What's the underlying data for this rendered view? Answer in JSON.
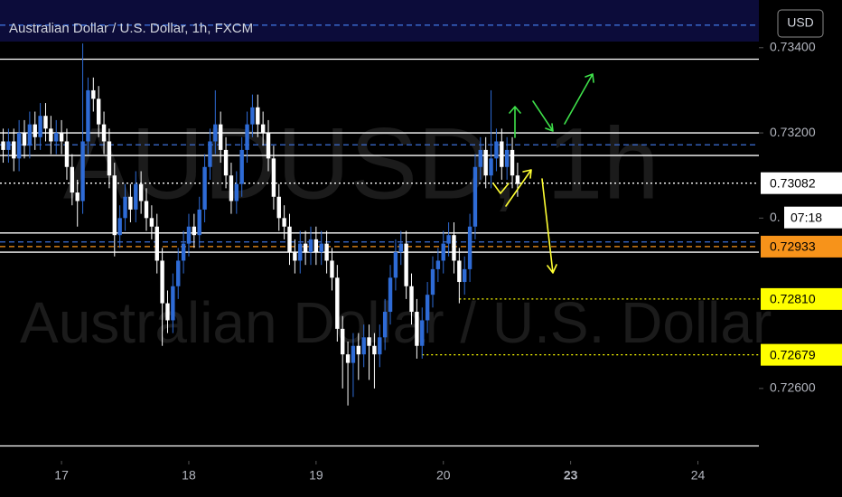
{
  "chart_data": {
    "type": "candlestick",
    "title": "Australian Dollar / U.S. Dollar, 1h, FXCM",
    "watermark": "AUDUSD, 1h",
    "watermark_subtitle": "Australian Dollar / U.S. Dollar",
    "currency": "USD",
    "countdown": "07:18",
    "up_color": "#2e6bd6",
    "down_color": "#ffffff",
    "x": [
      -11,
      -10,
      -9,
      -8,
      -7,
      -6,
      -5,
      -4,
      -3,
      -2,
      -1,
      0,
      1,
      2,
      3,
      4,
      5,
      6,
      7,
      8,
      9,
      10,
      11,
      12,
      13,
      14,
      15,
      16,
      17,
      18,
      19,
      20,
      21,
      22,
      23,
      24,
      25,
      26,
      27,
      28,
      29,
      30,
      31,
      32,
      33,
      34,
      35,
      36,
      37,
      38,
      39,
      40,
      41,
      42,
      43,
      44,
      45,
      46,
      47,
      48,
      49,
      50,
      51,
      52,
      53,
      54,
      55,
      56,
      57,
      58,
      59,
      60,
      61,
      62,
      63,
      64,
      65,
      66,
      67,
      68,
      69,
      70,
      71,
      72,
      73,
      74,
      75,
      76,
      77,
      78,
      79,
      80,
      81,
      82,
      83,
      84,
      85,
      86
    ],
    "open": [
      0.7318,
      0.7316,
      0.7318,
      0.7314,
      0.732,
      0.7317,
      0.7322,
      0.7319,
      0.7324,
      0.7321,
      0.7318,
      0.732,
      0.7318,
      0.7312,
      0.7306,
      0.7304,
      0.7318,
      0.733,
      0.7328,
      0.7322,
      0.7318,
      0.731,
      0.7296,
      0.73,
      0.7305,
      0.7302,
      0.7308,
      0.7304,
      0.73,
      0.7298,
      0.729,
      0.728,
      0.7276,
      0.7284,
      0.729,
      0.7294,
      0.7298,
      0.7296,
      0.7302,
      0.7312,
      0.7318,
      0.7322,
      0.7316,
      0.731,
      0.7304,
      0.7308,
      0.7316,
      0.7322,
      0.7326,
      0.7322,
      0.732,
      0.7314,
      0.7305,
      0.73,
      0.7298,
      0.7292,
      0.729,
      0.7294,
      0.7292,
      0.7295,
      0.7292,
      0.7294,
      0.729,
      0.7286,
      0.7274,
      0.7268,
      0.7266,
      0.727,
      0.7268,
      0.7272,
      0.727,
      0.7268,
      0.7272,
      0.7278,
      0.7286,
      0.7292,
      0.7294,
      0.7284,
      0.7278,
      0.727,
      0.7276,
      0.7282,
      0.7288,
      0.729,
      0.7294,
      0.7296,
      0.729,
      0.7285,
      0.7288,
      0.7298,
      0.7312,
      0.7316,
      0.731,
      0.7314,
      0.7318,
      0.7312,
      0.7316,
      0.731
    ],
    "high": [
      0.7321,
      0.7321,
      0.7321,
      0.7323,
      0.7323,
      0.7325,
      0.7325,
      0.7327,
      0.7327,
      0.7324,
      0.7323,
      0.7323,
      0.7321,
      0.7315,
      0.7309,
      0.7341,
      0.7333,
      0.7333,
      0.7331,
      0.7325,
      0.7321,
      0.7313,
      0.7303,
      0.7308,
      0.7308,
      0.7311,
      0.7311,
      0.7307,
      0.7303,
      0.7301,
      0.7293,
      0.7283,
      0.7287,
      0.7293,
      0.7297,
      0.7301,
      0.7301,
      0.7305,
      0.7315,
      0.7321,
      0.733,
      0.7325,
      0.7319,
      0.7313,
      0.7311,
      0.7319,
      0.7325,
      0.7329,
      0.7329,
      0.7325,
      0.7323,
      0.7317,
      0.7308,
      0.7303,
      0.7301,
      0.7295,
      0.7297,
      0.7297,
      0.7298,
      0.7298,
      0.7297,
      0.7297,
      0.7293,
      0.7289,
      0.7277,
      0.7271,
      0.7273,
      0.7273,
      0.7275,
      0.7275,
      0.7273,
      0.7275,
      0.7281,
      0.7289,
      0.7295,
      0.7297,
      0.7297,
      0.7287,
      0.7281,
      0.7279,
      0.7285,
      0.7291,
      0.7293,
      0.7297,
      0.7299,
      0.7299,
      0.7293,
      0.7291,
      0.7301,
      0.7315,
      0.7319,
      0.7319,
      0.733,
      0.7321,
      0.7321,
      0.7319,
      0.7319,
      0.7313
    ],
    "low": [
      0.7313,
      0.7313,
      0.7311,
      0.7311,
      0.7314,
      0.7314,
      0.7316,
      0.7316,
      0.7318,
      0.7315,
      0.7315,
      0.7315,
      0.7309,
      0.7303,
      0.7298,
      0.7301,
      0.7315,
      0.7325,
      0.7319,
      0.7315,
      0.7307,
      0.7291,
      0.7293,
      0.7297,
      0.7299,
      0.7299,
      0.7301,
      0.7297,
      0.7295,
      0.7287,
      0.727,
      0.7273,
      0.7273,
      0.7281,
      0.7287,
      0.7291,
      0.7293,
      0.7293,
      0.7299,
      0.7309,
      0.7315,
      0.7313,
      0.7307,
      0.7301,
      0.7301,
      0.7305,
      0.7313,
      0.7319,
      0.7319,
      0.7317,
      0.7311,
      0.7302,
      0.7297,
      0.7295,
      0.7289,
      0.7287,
      0.7287,
      0.7289,
      0.7289,
      0.7289,
      0.7289,
      0.7287,
      0.7283,
      0.7271,
      0.726,
      0.7256,
      0.7258,
      0.7262,
      0.7265,
      0.7262,
      0.726,
      0.7265,
      0.7269,
      0.7275,
      0.7283,
      0.7289,
      0.7281,
      0.7275,
      0.7267,
      0.7267,
      0.7273,
      0.7279,
      0.7285,
      0.7287,
      0.7291,
      0.7287,
      0.728,
      0.7282,
      0.7285,
      0.7295,
      0.7309,
      0.7307,
      0.7307,
      0.7311,
      0.7309,
      0.7309,
      0.7307,
      0.7305
    ],
    "close": [
      0.7316,
      0.7318,
      0.7314,
      0.732,
      0.7317,
      0.7322,
      0.7319,
      0.7324,
      0.7321,
      0.7318,
      0.732,
      0.7318,
      0.7312,
      0.7306,
      0.7304,
      0.7318,
      0.733,
      0.7328,
      0.7322,
      0.7318,
      0.731,
      0.7296,
      0.73,
      0.7305,
      0.7302,
      0.7308,
      0.7304,
      0.73,
      0.7298,
      0.729,
      0.728,
      0.7276,
      0.7284,
      0.729,
      0.7294,
      0.7298,
      0.7296,
      0.7302,
      0.7312,
      0.7318,
      0.7322,
      0.7316,
      0.731,
      0.7304,
      0.7308,
      0.7316,
      0.7322,
      0.7326,
      0.7322,
      0.732,
      0.7314,
      0.7305,
      0.73,
      0.7298,
      0.7292,
      0.729,
      0.7294,
      0.7292,
      0.7295,
      0.7292,
      0.7294,
      0.729,
      0.7286,
      0.7274,
      0.7268,
      0.7266,
      0.727,
      0.7268,
      0.7272,
      0.727,
      0.7268,
      0.7272,
      0.7278,
      0.7286,
      0.7292,
      0.7294,
      0.7284,
      0.7278,
      0.727,
      0.7276,
      0.7282,
      0.7288,
      0.729,
      0.7294,
      0.7296,
      0.729,
      0.7285,
      0.7288,
      0.7298,
      0.7312,
      0.7316,
      0.731,
      0.7314,
      0.7318,
      0.7312,
      0.7316,
      0.731,
      0.7308
    ],
    "xlim": [
      -11.6,
      131.5
    ],
    "ylim": [
      0.7243,
      0.73512
    ],
    "xticks": [
      {
        "value": 0,
        "label": "17"
      },
      {
        "value": 24,
        "label": "18"
      },
      {
        "value": 48,
        "label": "19"
      },
      {
        "value": 72,
        "label": "20"
      },
      {
        "value": 96,
        "label": "23"
      },
      {
        "value": 120,
        "label": "24"
      }
    ],
    "yticks": [
      {
        "value": 0.734,
        "label": "0.73400"
      },
      {
        "value": 0.732,
        "label": "0.73200"
      },
      {
        "value": 0.73,
        "label": "0."
      },
      {
        "value": 0.726,
        "label": "0.72600"
      }
    ],
    "levels": [
      {
        "value": 0.73453,
        "color": "#3d6fd8",
        "style": "dashed"
      },
      {
        "value": 0.73373,
        "color": "#ffffff",
        "style": "solid"
      },
      {
        "value": 0.732,
        "color": "#ffffff",
        "style": "solid"
      },
      {
        "value": 0.73172,
        "color": "#3d6fd8",
        "style": "dashed"
      },
      {
        "value": 0.73147,
        "color": "#ffffff",
        "style": "solid"
      },
      {
        "value": 0.73082,
        "color": "#ffffff",
        "style": "dotted"
      },
      {
        "value": 0.72965,
        "color": "#ffffff",
        "style": "solid"
      },
      {
        "value": 0.72944,
        "color": "#3d6fd8",
        "style": "dashed"
      },
      {
        "value": 0.72933,
        "color": "#f7931a",
        "style": "dashed"
      },
      {
        "value": 0.7292,
        "color": "#ffffff",
        "style": "solid"
      },
      {
        "value": 0.7281,
        "color": "#ffff00",
        "style": "dotted",
        "from": 75
      },
      {
        "value": 0.72679,
        "color": "#ffff00",
        "style": "dotted",
        "from": 68
      },
      {
        "value": 0.72465,
        "color": "#ffffff",
        "style": "solid"
      }
    ],
    "price_labels": [
      {
        "value": 0.73082,
        "label": "0.73082",
        "color": "#ffffff"
      },
      {
        "value": 0.72933,
        "label": "0.72933",
        "color": "#f7931a"
      },
      {
        "value": 0.7281,
        "label": "0.72810",
        "color": "#ffff00"
      },
      {
        "value": 0.72679,
        "label": "0.72679",
        "color": "#ffff00"
      }
    ]
  }
}
